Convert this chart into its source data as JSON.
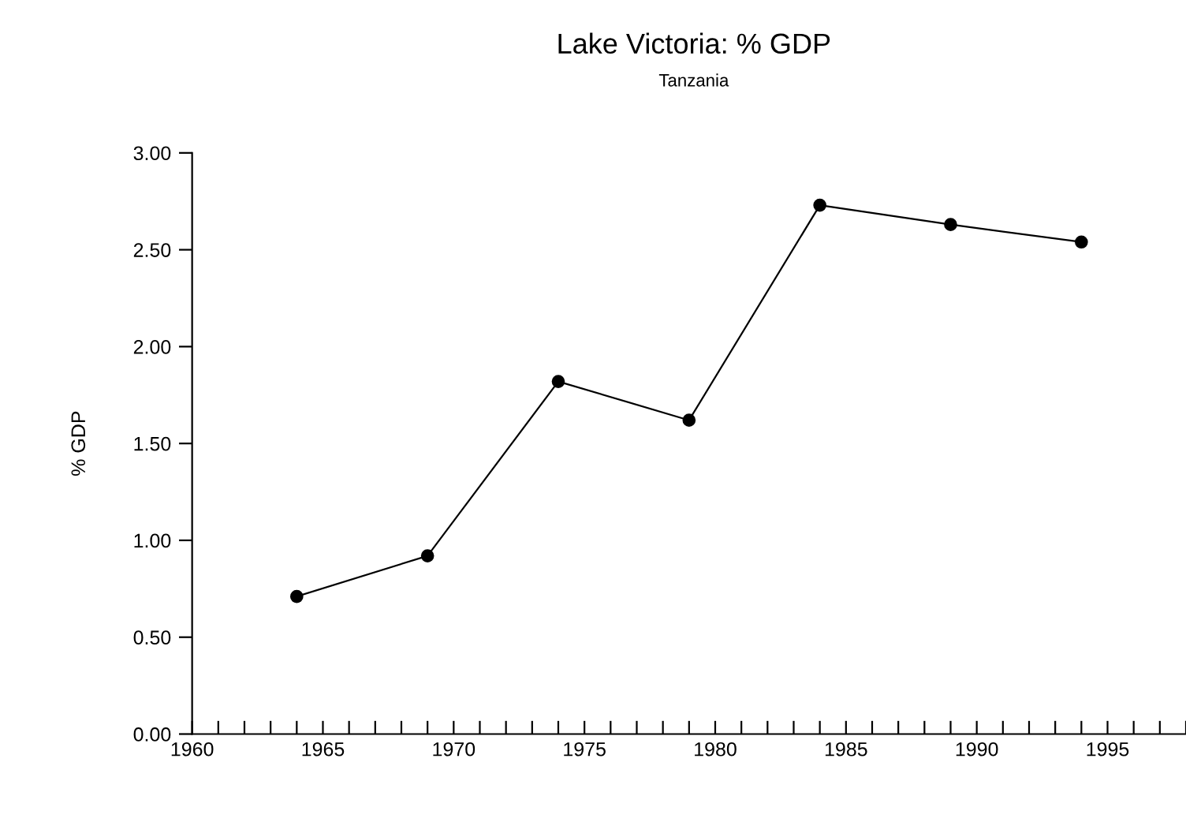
{
  "chart_data": {
    "type": "line",
    "title": "Lake Victoria: % GDP",
    "subtitle": "Tanzania",
    "ylabel": "% GDP",
    "x": [
      1964,
      1969,
      1974,
      1979,
      1984,
      1989,
      1994
    ],
    "series": [
      {
        "color": "#000000",
        "values": [
          0.71,
          0.92,
          1.82,
          1.62,
          2.73,
          2.63,
          2.54
        ]
      }
    ],
    "xlim": [
      1960,
      1998
    ],
    "xticks": [
      1960,
      {
        "value": 1961,
        "label": null
      },
      {
        "value": 1962,
        "label": null
      },
      {
        "value": 1963,
        "label": null
      },
      {
        "value": 1964,
        "label": null
      },
      1965,
      {
        "value": 1966,
        "label": null
      },
      {
        "value": 1967,
        "label": null
      },
      {
        "value": 1968,
        "label": null
      },
      {
        "value": 1969,
        "label": null
      },
      1970,
      {
        "value": 1971,
        "label": null
      },
      {
        "value": 1972,
        "label": null
      },
      {
        "value": 1973,
        "label": null
      },
      {
        "value": 1974,
        "label": null
      },
      1975,
      {
        "value": 1976,
        "label": null
      },
      {
        "value": 1977,
        "label": null
      },
      {
        "value": 1978,
        "label": null
      },
      {
        "value": 1979,
        "label": null
      },
      1980,
      {
        "value": 1981,
        "label": null
      },
      {
        "value": 1982,
        "label": null
      },
      {
        "value": 1983,
        "label": null
      },
      {
        "value": 1984,
        "label": null
      },
      1985,
      {
        "value": 1986,
        "label": null
      },
      {
        "value": 1987,
        "label": null
      },
      {
        "value": 1988,
        "label": null
      },
      {
        "value": 1989,
        "label": null
      },
      1990,
      {
        "value": 1991,
        "label": null
      },
      {
        "value": 1992,
        "label": null
      },
      {
        "value": 1993,
        "label": null
      },
      {
        "value": 1994,
        "label": null
      },
      1995,
      {
        "value": 1996,
        "label": null
      },
      {
        "value": 1997,
        "label": null
      },
      {
        "value": 1998,
        "label": null
      }
    ],
    "ylim": [
      0,
      3
    ],
    "yticks": [
      {
        "value": 0,
        "label": "0.00"
      },
      {
        "value": 0.5,
        "label": "0.50"
      },
      {
        "value": 1,
        "label": "1.00"
      },
      {
        "value": 1.5,
        "label": "1.50"
      },
      {
        "value": 2,
        "label": "2.00"
      },
      {
        "value": 2.5,
        "label": "2.50"
      },
      {
        "value": 3,
        "label": "3.00"
      }
    ],
    "marker": "circle",
    "line_style": "solid",
    "grid": false,
    "legend": false
  }
}
